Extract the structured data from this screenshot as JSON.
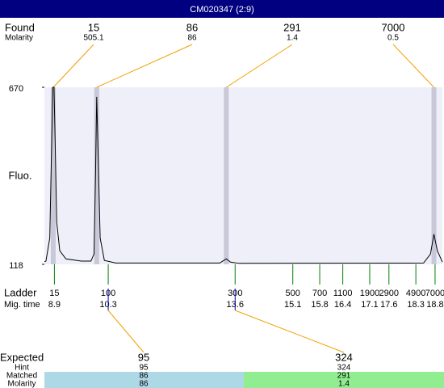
{
  "title_bar": "CM020347 (2:9)",
  "chart_data": {
    "type": "line",
    "y_label": "Fluo.",
    "color": "#000000",
    "ylim": [
      118,
      670
    ],
    "yticks": [
      118,
      670
    ],
    "xlim": [
      8.64,
      18.99
    ],
    "x": [
      8.64,
      8.68,
      8.78,
      8.83,
      8.86,
      8.89,
      8.92,
      8.96,
      9.04,
      9.2,
      9.6,
      9.85,
      9.93,
      9.97,
      10.0,
      10.04,
      10.09,
      10.2,
      10.5,
      13.2,
      13.33,
      13.37,
      13.48,
      13.7,
      18.5,
      18.68,
      18.77,
      18.86,
      18.99
    ],
    "values": [
      126,
      128,
      200,
      500,
      670,
      670,
      500,
      250,
      160,
      135,
      128,
      128,
      150,
      400,
      640,
      450,
      200,
      130,
      122,
      122,
      132,
      135,
      125,
      121,
      122,
      150,
      212,
      160,
      125
    ]
  },
  "found": {
    "label": "Found",
    "molarity_label": "Molarity",
    "peaks": [
      {
        "size": 15,
        "molarity": 505.1,
        "mig_time": 8.87
      },
      {
        "size": 86,
        "molarity": 86,
        "mig_time": 10.0
      },
      {
        "size": 291,
        "molarity": 1.4,
        "mig_time": 13.37
      },
      {
        "size": 7000,
        "molarity": 0.5,
        "mig_time": 18.77
      }
    ]
  },
  "ladder": {
    "label": "Ladder",
    "mig_label": "Mig. time",
    "sizes": [
      15,
      100,
      300,
      500,
      700,
      1100,
      1900,
      2900,
      4900,
      7000
    ],
    "mig_times": [
      8.9,
      10.3,
      13.6,
      15.1,
      15.8,
      16.4,
      17.1,
      17.6,
      18.3,
      18.8
    ]
  },
  "expected": {
    "label": "Expected",
    "hint_label": "Hint",
    "matched_label": "Matched",
    "molarity_label": "Molarity",
    "rows": [
      {
        "expected": 95,
        "hint": 95,
        "matched": 86,
        "molarity": 86
      },
      {
        "expected": 324,
        "hint": 324,
        "matched": 291,
        "molarity": 1.4
      }
    ]
  }
}
